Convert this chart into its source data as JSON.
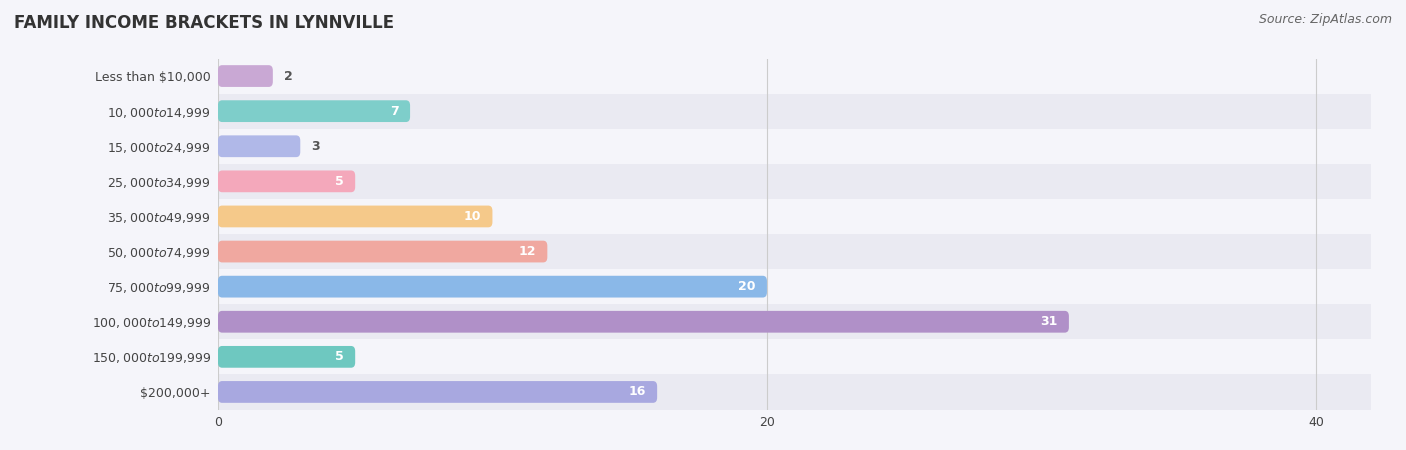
{
  "title": "FAMILY INCOME BRACKETS IN LYNNVILLE",
  "source": "Source: ZipAtlas.com",
  "categories": [
    "Less than $10,000",
    "$10,000 to $14,999",
    "$15,000 to $24,999",
    "$25,000 to $34,999",
    "$35,000 to $49,999",
    "$50,000 to $74,999",
    "$75,000 to $99,999",
    "$100,000 to $149,999",
    "$150,000 to $199,999",
    "$200,000+"
  ],
  "values": [
    2,
    7,
    3,
    5,
    10,
    12,
    20,
    31,
    5,
    16
  ],
  "colors": [
    "#c9a8d4",
    "#7ececa",
    "#b0b8e8",
    "#f4a8bb",
    "#f5c98a",
    "#f0a8a0",
    "#8ab8e8",
    "#b090c8",
    "#6ec8c0",
    "#a8a8e0"
  ],
  "xlim": [
    0,
    42
  ],
  "xticks": [
    0,
    20,
    40
  ],
  "bar_height": 0.62,
  "row_bg_light": "#f5f5fa",
  "row_bg_dark": "#eaeaf2",
  "label_color": "#444444",
  "value_color_inside": "#ffffff",
  "value_color_outside": "#555555",
  "title_fontsize": 12,
  "label_fontsize": 9,
  "value_fontsize": 9,
  "source_fontsize": 9,
  "grid_color": "#cccccc"
}
